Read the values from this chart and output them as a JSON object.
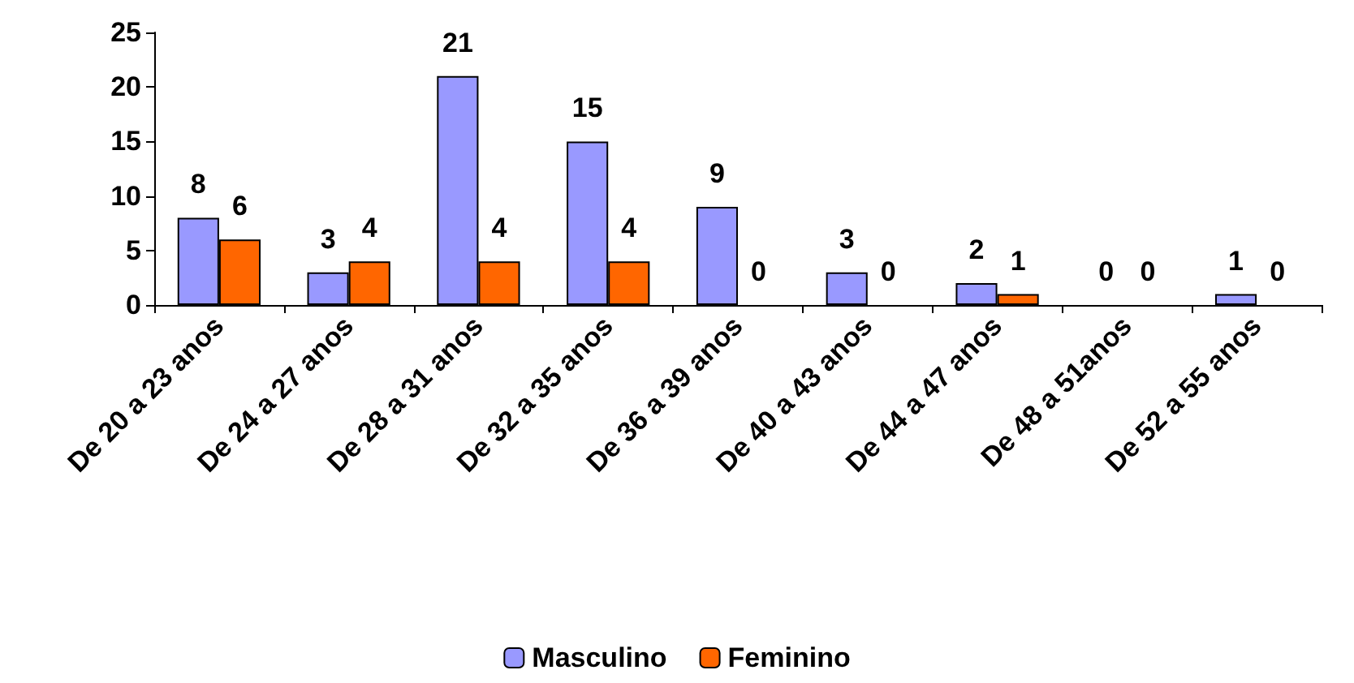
{
  "chart_data": {
    "type": "bar",
    "categories": [
      "De 20 a 23 anos",
      "De 24 a 27 anos",
      "De 28 a 31 anos",
      "De 32 a 35 anos",
      "De 36 a 39 anos",
      "De 40 a 43 anos",
      "De 44 a 47 anos",
      "De 48 a 51anos",
      "De 52 a 55 anos"
    ],
    "series": [
      {
        "name": "Masculino",
        "color": "#9999ff",
        "values": [
          8,
          3,
          21,
          15,
          9,
          3,
          2,
          0,
          1
        ]
      },
      {
        "name": "Feminino",
        "color": "#ff6600",
        "values": [
          6,
          4,
          4,
          4,
          0,
          0,
          1,
          0,
          0
        ]
      }
    ],
    "ylim": [
      0,
      25
    ],
    "yticks": [
      0,
      5,
      10,
      15,
      20,
      25
    ],
    "grid": false,
    "legend": "bottom",
    "data_labels": true
  }
}
